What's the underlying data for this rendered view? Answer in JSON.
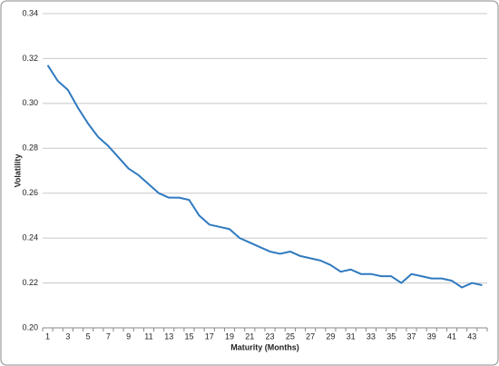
{
  "chart_data": {
    "type": "line",
    "x_label": "Maturity (Months)",
    "y_label": "Volatility",
    "categories": [
      "1",
      null,
      "3",
      null,
      "5",
      null,
      "7",
      null,
      "9",
      null,
      "11",
      null,
      "13",
      null,
      "15",
      null,
      "17",
      null,
      "19",
      null,
      "21",
      null,
      "23",
      null,
      "25",
      null,
      "27",
      null,
      "29",
      null,
      "31",
      null,
      "33",
      null,
      "35",
      null,
      "37",
      null,
      "39",
      null,
      "41",
      null,
      "43",
      null
    ],
    "values": [
      0.317,
      0.31,
      0.306,
      0.298,
      0.291,
      0.285,
      0.281,
      0.276,
      0.271,
      0.268,
      0.264,
      0.26,
      0.258,
      0.258,
      0.257,
      0.25,
      0.246,
      0.245,
      0.244,
      0.24,
      0.238,
      0.236,
      0.234,
      0.233,
      0.234,
      0.232,
      0.231,
      0.23,
      0.228,
      0.225,
      0.226,
      0.224,
      0.224,
      0.223,
      0.223,
      0.22,
      0.224,
      0.223,
      0.222,
      0.222,
      0.221,
      0.218,
      0.22,
      0.219
    ],
    "color": "#2f7ac0",
    "ylim": [
      0.2,
      0.34
    ],
    "yticks": [
      {
        "value": 0.2,
        "label": "0.20"
      },
      0.22,
      0.24,
      0.26,
      0.28,
      {
        "value": 0.3,
        "label": "0.30"
      },
      0.32,
      0.34
    ],
    "grid": true
  }
}
